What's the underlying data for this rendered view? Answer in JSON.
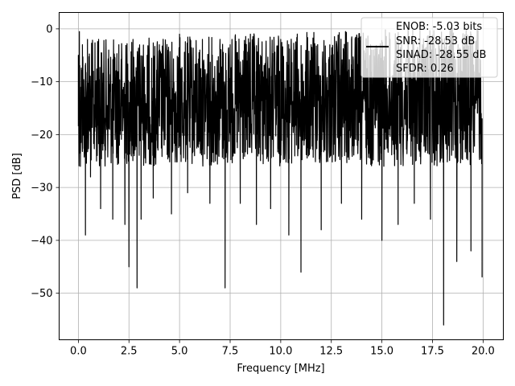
{
  "chart_data": {
    "type": "line",
    "xlabel": "Frequency [MHz]",
    "ylabel": "PSD [dB]",
    "xlim": [
      -0.95,
      21.0
    ],
    "ylim": [
      -58.8,
      3.1
    ],
    "xticks": [
      0.0,
      2.5,
      5.0,
      7.5,
      10.0,
      12.5,
      15.0,
      17.5,
      20.0
    ],
    "xtick_labels": [
      "0.0",
      "2.5",
      "5.0",
      "7.5",
      "10.0",
      "12.5",
      "15.0",
      "17.5",
      "20.0"
    ],
    "yticks": [
      0,
      -10,
      -20,
      -30,
      -40,
      -50
    ],
    "ytick_labels": [
      "0",
      "−10",
      "−20",
      "−30",
      "−40",
      "−50"
    ],
    "grid": true,
    "legend_position": "top-right",
    "line_color": "#000000",
    "legend_lines": [
      "ENOB: -5.03 bits",
      "SNR: -28.53 dB",
      "SINAD: -28.55 dB",
      "SFDR: 0.26"
    ],
    "series": [
      {
        "color": "#000000",
        "approx_band": {
          "top": -2,
          "bottom": -26
        },
        "x": [
          0.0,
          0.03,
          0.05,
          0.1,
          0.2,
          0.35,
          0.45,
          0.6,
          1.0,
          1.1,
          1.5,
          1.7,
          2.0,
          2.3,
          2.5,
          2.7,
          2.9,
          3.1,
          3.4,
          3.7,
          4.0,
          4.6,
          5.0,
          5.4,
          6.0,
          6.5,
          7.0,
          7.25,
          7.5,
          8.0,
          8.5,
          8.8,
          9.0,
          9.5,
          10.0,
          10.4,
          10.7,
          11.0,
          11.5,
          12.0,
          12.5,
          13.0,
          13.5,
          14.0,
          14.5,
          15.0,
          15.4,
          15.8,
          16.2,
          16.6,
          17.0,
          17.4,
          17.8,
          18.05,
          18.4,
          18.7,
          19.0,
          19.4,
          19.7,
          19.95
        ],
        "y": [
          -5,
          -24,
          -0.5,
          -26,
          -3,
          -39,
          -2,
          -28,
          -2,
          -34,
          -4,
          -36,
          -3,
          -37,
          -45,
          -2,
          -49,
          -36,
          -5,
          -32,
          -3,
          -35,
          -1,
          -31,
          -4,
          -33,
          -2,
          -49,
          -3,
          -33,
          -1,
          -37,
          -5,
          -34,
          -2,
          -39,
          -4,
          -46,
          -3,
          -38,
          -5,
          -33,
          -2,
          -36,
          -4,
          -40,
          -2,
          -37,
          -5,
          -33,
          -3,
          -36,
          -2,
          -56,
          -4,
          -44,
          -2,
          -42,
          -5,
          -47
        ]
      }
    ]
  }
}
